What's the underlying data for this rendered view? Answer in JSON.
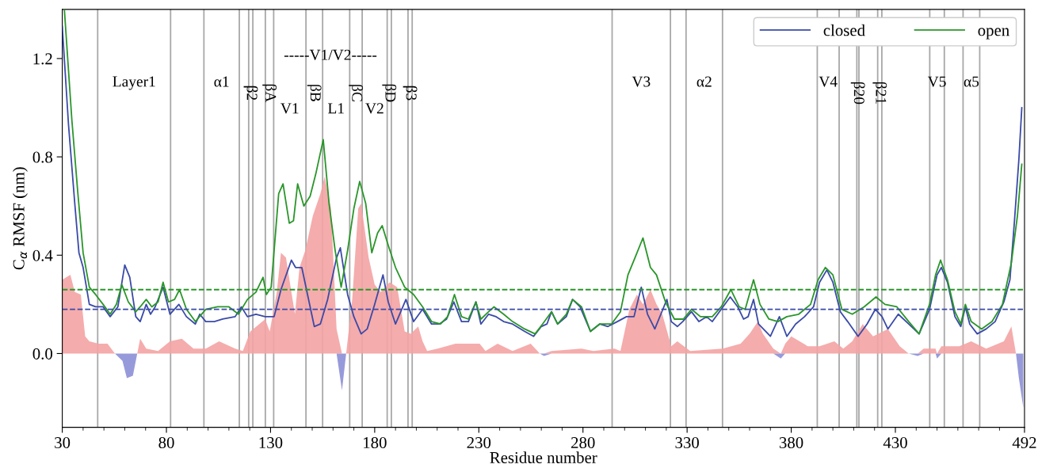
{
  "chart_data": {
    "type": "line",
    "xlabel": "Residue number",
    "ylabel": "C$_{α}$ RMSF (nm)",
    "xlim": [
      30,
      492
    ],
    "ylim": [
      -0.3,
      1.4
    ],
    "xticks": [
      30,
      {
        "value": 40,
        "label": null
      },
      {
        "value": 50,
        "label": null
      },
      {
        "value": 60,
        "label": null
      },
      {
        "value": 70,
        "label": null
      },
      80,
      {
        "value": 90,
        "label": null
      },
      {
        "value": 100,
        "label": null
      },
      {
        "value": 110,
        "label": null
      },
      {
        "value": 120,
        "label": null
      },
      130,
      {
        "value": 140,
        "label": null
      },
      {
        "value": 150,
        "label": null
      },
      {
        "value": 160,
        "label": null
      },
      {
        "value": 170,
        "label": null
      },
      180,
      {
        "value": 190,
        "label": null
      },
      {
        "value": 200,
        "label": null
      },
      {
        "value": 210,
        "label": null
      },
      {
        "value": 220,
        "label": null
      },
      230,
      {
        "value": 240,
        "label": null
      },
      {
        "value": 250,
        "label": null
      },
      {
        "value": 260,
        "label": null
      },
      {
        "value": 270,
        "label": null
      },
      280,
      {
        "value": 290,
        "label": null
      },
      {
        "value": 300,
        "label": null
      },
      {
        "value": 310,
        "label": null
      },
      {
        "value": 320,
        "label": null
      },
      330,
      {
        "value": 340,
        "label": null
      },
      {
        "value": 350,
        "label": null
      },
      {
        "value": 360,
        "label": null
      },
      {
        "value": 370,
        "label": null
      },
      380,
      {
        "value": 390,
        "label": null
      },
      {
        "value": 400,
        "label": null
      },
      {
        "value": 410,
        "label": null
      },
      {
        "value": 420,
        "label": null
      },
      430,
      {
        "value": 440,
        "label": null
      },
      {
        "value": 450,
        "label": null
      },
      {
        "value": 460,
        "label": null
      },
      {
        "value": 470,
        "label": null
      },
      {
        "value": 480,
        "label": null
      },
      492
    ],
    "yticks": [
      {
        "value": 0.0,
        "label": "0.0"
      },
      {
        "value": 0.4,
        "label": "0.4"
      },
      {
        "value": 0.8,
        "label": "0.8"
      },
      {
        "value": 1.2,
        "label": "1.2"
      }
    ],
    "grid": false,
    "legend": "top right",
    "marker": "none",
    "series": [
      {
        "type": "area",
        "color": "#f4a3a3",
        "x": [
          30,
          33.9,
          36,
          38.9,
          41,
          43,
          47.4,
          51.7,
          55.3,
          58.9,
          61,
          63.9,
          66,
          67.4,
          70.3,
          76,
          81.7,
          87.4,
          93,
          98.9,
          105.3,
          113,
          116.7,
          120.3,
          124.6,
          127.4,
          129.6,
          133,
          135,
          137.4,
          140,
          141.7,
          143.9,
          146.7,
          150.3,
          153.9,
          156,
          159,
          161.7,
          164.3,
          166.3,
          169.2,
          172.1,
          173.5,
          177.1,
          180,
          182.9,
          187.2,
          190.8,
          194.4,
          197.3,
          200.9,
          203,
          205.2,
          210.2,
          218.8,
          230.4,
          233.2,
          239,
          246.2,
          254.9,
          259.3,
          261.3,
          264.9,
          279.3,
          285,
          295.1,
          298,
          302.3,
          305.9,
          308.8,
          312.4,
          315.3,
          318.1,
          322.4,
          325.3,
          331.5,
          347.1,
          355.7,
          360,
          364,
          366.4,
          371.4,
          375,
          377.1,
          380,
          387.9,
          393.6,
          400.7,
          405,
          409.3,
          414.3,
          419.3,
          426.4,
          432.1,
          436.4,
          440.7,
          443.6,
          449.3,
          450,
          452.1,
          460.7,
          466.4,
          473.6,
          482.1,
          485.7,
          487.9,
          489.3,
          491.4
        ],
        "values": [
          0.3,
          0.32,
          0.25,
          0.24,
          0.07,
          0.05,
          0.04,
          0.04,
          0,
          0,
          0,
          0,
          0,
          0.06,
          0.02,
          0.01,
          0.05,
          0.06,
          0.02,
          0.02,
          0.05,
          0.02,
          0.01,
          0.09,
          0.12,
          0.14,
          0.09,
          0.25,
          0.41,
          0.39,
          0.25,
          0.16,
          0.35,
          0.42,
          0.56,
          0.65,
          0.72,
          0.59,
          0.1,
          0,
          0,
          0.22,
          0.59,
          0.61,
          0.39,
          0.28,
          0.25,
          0.29,
          0.27,
          0.09,
          0.08,
          0.11,
          0.05,
          0.01,
          0.02,
          0.04,
          0.04,
          0.01,
          0.04,
          0.01,
          0.04,
          0,
          0,
          0.01,
          0.02,
          0.01,
          0.02,
          0.01,
          0.18,
          0.24,
          0.2,
          0.26,
          0.2,
          0.16,
          0.03,
          0.05,
          0.01,
          0.02,
          0.04,
          0.08,
          0.13,
          0.08,
          0.02,
          0,
          0.04,
          0.07,
          0.03,
          0.03,
          0.05,
          0.02,
          0.05,
          0.12,
          0.07,
          0.1,
          0.03,
          0,
          0,
          0.02,
          0.02,
          0,
          0.03,
          0.03,
          0.05,
          0.02,
          0.05,
          0.11,
          0,
          0,
          0
        ]
      },
      {
        "type": "area",
        "color": "#8c8fd6",
        "x": [
          30,
          33.9,
          36,
          38.9,
          41,
          43,
          47.4,
          51.7,
          55.3,
          58.9,
          61,
          63.9,
          66,
          67.4,
          70.3,
          76,
          81.7,
          87.4,
          93,
          98.9,
          105.3,
          113,
          116.7,
          120.3,
          124.6,
          127.4,
          129.6,
          133,
          135,
          137.4,
          140,
          141.7,
          143.9,
          146.7,
          150.3,
          153.9,
          156,
          159,
          161.7,
          164.3,
          166.3,
          169.2,
          172.1,
          173.5,
          177.1,
          180,
          182.9,
          187.2,
          190.8,
          194.4,
          197.3,
          200.9,
          203,
          205.2,
          210.2,
          218.8,
          230.4,
          233.2,
          239,
          246.2,
          254.9,
          259.3,
          261.3,
          264.9,
          279.3,
          285,
          295.1,
          298,
          302.3,
          305.9,
          308.8,
          312.4,
          315.3,
          318.1,
          322.4,
          325.3,
          331.5,
          347.1,
          355.7,
          360,
          364,
          366.4,
          371.4,
          375,
          377.1,
          380,
          387.9,
          393.6,
          400.7,
          405,
          409.3,
          414.3,
          419.3,
          426.4,
          432.1,
          436.4,
          440.7,
          443.6,
          449.3,
          450,
          452.1,
          460.7,
          466.4,
          473.6,
          482.1,
          485.7,
          487.9,
          489.3,
          491.4
        ],
        "values": [
          0,
          0,
          0,
          0,
          0,
          0,
          0,
          0,
          0,
          -0.03,
          -0.1,
          -0.09,
          0,
          0,
          0,
          0,
          0,
          0,
          0,
          0,
          0,
          0,
          0,
          0,
          0,
          0,
          0,
          0,
          0,
          0,
          0,
          0,
          0,
          0,
          0,
          0,
          0,
          0,
          0,
          -0.15,
          0,
          0,
          0,
          0,
          0,
          0,
          0,
          0,
          0,
          0,
          0,
          0,
          0,
          0,
          0,
          0,
          0,
          0,
          0,
          0,
          0,
          0,
          -0.01,
          0,
          0,
          0,
          0,
          0,
          0,
          0,
          0,
          0,
          0,
          0,
          0,
          0,
          0,
          0,
          0,
          0,
          0,
          0,
          0,
          -0.02,
          0,
          0,
          0,
          0,
          0,
          0,
          0,
          0,
          0,
          0,
          0,
          0,
          -0.01,
          0,
          0,
          -0.02,
          0,
          0,
          0,
          0,
          0,
          0,
          0,
          -0.1,
          -0.22
        ]
      },
      {
        "type": "line",
        "name": "closed",
        "color": "#3a4aa8",
        "x": [
          30,
          33,
          36,
          38,
          40,
          43,
          46,
          49.6,
          53,
          56.7,
          60,
          62.4,
          65.3,
          67.4,
          70.3,
          72.4,
          74.6,
          78.4,
          81.7,
          86,
          89.6,
          93.9,
          96,
          98.9,
          103,
          107,
          113,
          116,
          118.9,
          123,
          127.4,
          131.7,
          135,
          140,
          142,
          145,
          149,
          151,
          153.9,
          157.4,
          161.7,
          163.5,
          167,
          170,
          173.5,
          176.4,
          180,
          184,
          186.5,
          190,
          195,
          198.7,
          203,
          207.3,
          211,
          214.5,
          218,
          221.7,
          225,
          228.6,
          231,
          234.7,
          238.3,
          241.9,
          246.2,
          252,
          256.3,
          260,
          262.7,
          264.9,
          267.8,
          272,
          275,
          278.6,
          283.6,
          288,
          292,
          296.5,
          300.9,
          304.5,
          308,
          311,
          314.5,
          317.4,
          320.3,
          322.4,
          325.3,
          327.9,
          332.1,
          335.7,
          339.3,
          342.1,
          346.4,
          350.7,
          354.3,
          357.1,
          359.3,
          361.9,
          364.3,
          370,
          374.3,
          377.9,
          382.1,
          386.4,
          390.7,
          393.6,
          397.1,
          400,
          403.6,
          407.1,
          412.1,
          416.4,
          420.4,
          423.6,
          426.4,
          431.4,
          436.4,
          441.4,
          446.4,
          450,
          452.1,
          455,
          458.6,
          461.4,
          463.6,
          465.7,
          469.3,
          473.6,
          477.9,
          482.1,
          485,
          487.1,
          489.3,
          490.7
        ],
        "values": [
          1.33,
          0.93,
          0.61,
          0.41,
          0.35,
          0.2,
          0.19,
          0.19,
          0.15,
          0.19,
          0.36,
          0.31,
          0.15,
          0.13,
          0.2,
          0.16,
          0.19,
          0.27,
          0.16,
          0.2,
          0.15,
          0.12,
          0.16,
          0.13,
          0.13,
          0.14,
          0.15,
          0.19,
          0.15,
          0.16,
          0.15,
          0.15,
          0.26,
          0.38,
          0.35,
          0.35,
          0.19,
          0.11,
          0.12,
          0.22,
          0.39,
          0.43,
          0.24,
          0.15,
          0.08,
          0.1,
          0.2,
          0.32,
          0.21,
          0.12,
          0.22,
          0.13,
          0.18,
          0.12,
          0.12,
          0.14,
          0.21,
          0.13,
          0.13,
          0.21,
          0.12,
          0.16,
          0.15,
          0.13,
          0.12,
          0.09,
          0.07,
          0.11,
          0.12,
          0.17,
          0.12,
          0.15,
          0.22,
          0.19,
          0.09,
          0.12,
          0.11,
          0.13,
          0.15,
          0.15,
          0.27,
          0.16,
          0.1,
          0.16,
          0.22,
          0.13,
          0.11,
          0.13,
          0.17,
          0.13,
          0.15,
          0.13,
          0.18,
          0.23,
          0.19,
          0.14,
          0.15,
          0.22,
          0.12,
          0.07,
          0.15,
          0.07,
          0.12,
          0.15,
          0.19,
          0.29,
          0.34,
          0.29,
          0.17,
          0.13,
          0.07,
          0.12,
          0.18,
          0.15,
          0.1,
          0.16,
          0.12,
          0.08,
          0.18,
          0.32,
          0.35,
          0.29,
          0.15,
          0.11,
          0.19,
          0.12,
          0.08,
          0.1,
          0.13,
          0.21,
          0.3,
          0.53,
          0.79,
          1.0
        ]
      },
      {
        "type": "line",
        "name": "open",
        "color": "#2a962a",
        "x": [
          31,
          34.6,
          37.4,
          40,
          43,
          46,
          49.6,
          53,
          56,
          58.6,
          61.7,
          65.3,
          67.4,
          70.3,
          73,
          76,
          78.4,
          81,
          83.9,
          86.3,
          89.6,
          93.9,
          98.9,
          104.6,
          110,
          114.6,
          118.9,
          123,
          126.4,
          128,
          130.3,
          133.9,
          136,
          139,
          141,
          143,
          146,
          149,
          151.7,
          155.3,
          158.1,
          161,
          163.9,
          167,
          170,
          172.8,
          175.7,
          178.6,
          181.4,
          183.6,
          186.5,
          190,
          194.4,
          198.7,
          203,
          207.3,
          211.6,
          215,
          218.3,
          221.7,
          225,
          228.6,
          231,
          234.7,
          237.3,
          241.9,
          246.2,
          252,
          257,
          260.6,
          264.9,
          267.8,
          272,
          275,
          279.3,
          283.6,
          288,
          293.7,
          298,
          301.6,
          305,
          308.8,
          312.4,
          315.3,
          319.6,
          323.9,
          328.2,
          332.1,
          336.4,
          342.1,
          346.4,
          351,
          355,
          357.9,
          361.9,
          365,
          369.3,
          373.6,
          377.9,
          383.6,
          389.3,
          392.9,
          396.4,
          400,
          404.3,
          409.3,
          415,
          420.7,
          425,
          430.7,
          436.4,
          441.4,
          446.4,
          449.3,
          451.7,
          455,
          458.6,
          461.4,
          463.6,
          466.4,
          471.4,
          476.4,
          481.4,
          485.7,
          488.6,
          490.7
        ],
        "values": [
          1.4,
          0.95,
          0.66,
          0.41,
          0.27,
          0.24,
          0.2,
          0.16,
          0.2,
          0.28,
          0.21,
          0.17,
          0.19,
          0.22,
          0.19,
          0.21,
          0.29,
          0.21,
          0.22,
          0.26,
          0.18,
          0.13,
          0.18,
          0.19,
          0.19,
          0.16,
          0.22,
          0.25,
          0.31,
          0.24,
          0.27,
          0.65,
          0.69,
          0.53,
          0.54,
          0.69,
          0.6,
          0.64,
          0.73,
          0.87,
          0.61,
          0.42,
          0.27,
          0.42,
          0.59,
          0.7,
          0.61,
          0.41,
          0.49,
          0.52,
          0.44,
          0.35,
          0.27,
          0.24,
          0.19,
          0.13,
          0.12,
          0.15,
          0.24,
          0.15,
          0.14,
          0.21,
          0.14,
          0.17,
          0.19,
          0.16,
          0.13,
          0.1,
          0.08,
          0.12,
          0.17,
          0.12,
          0.16,
          0.22,
          0.19,
          0.09,
          0.12,
          0.12,
          0.17,
          0.32,
          0.39,
          0.47,
          0.35,
          0.32,
          0.21,
          0.14,
          0.14,
          0.18,
          0.15,
          0.15,
          0.19,
          0.26,
          0.19,
          0.18,
          0.3,
          0.2,
          0.14,
          0.13,
          0.15,
          0.16,
          0.2,
          0.3,
          0.35,
          0.32,
          0.18,
          0.16,
          0.19,
          0.23,
          0.2,
          0.19,
          0.13,
          0.08,
          0.2,
          0.32,
          0.38,
          0.3,
          0.17,
          0.12,
          0.2,
          0.13,
          0.1,
          0.13,
          0.2,
          0.37,
          0.56,
          0.77
        ]
      }
    ],
    "ref_lines": [
      {
        "axis": "y",
        "value": 0.26,
        "color": "#2a962a",
        "line_style": "dashed"
      },
      {
        "axis": "y",
        "value": 0.18,
        "color": "#3a4aa8",
        "line_style": "dashed"
      },
      {
        "axis": "x",
        "value": 47,
        "color": "#a8a8a8"
      },
      {
        "axis": "x",
        "value": 82,
        "color": "#a8a8a8"
      },
      {
        "axis": "x",
        "value": 98,
        "color": "#a8a8a8"
      },
      {
        "axis": "x",
        "value": 115,
        "color": "#a8a8a8"
      },
      {
        "axis": "x",
        "value": 119.5,
        "color": "#a8a8a8"
      },
      {
        "axis": "x",
        "value": 121.5,
        "color": "#a8a8a8"
      },
      {
        "axis": "x",
        "value": 127.5,
        "color": "#a8a8a8"
      },
      {
        "axis": "x",
        "value": 131.5,
        "color": "#a8a8a8"
      },
      {
        "axis": "x",
        "value": 147,
        "color": "#a8a8a8"
      },
      {
        "axis": "x",
        "value": 155,
        "color": "#a8a8a8"
      },
      {
        "axis": "x",
        "value": 168,
        "color": "#a8a8a8"
      },
      {
        "axis": "x",
        "value": 174,
        "color": "#a8a8a8"
      },
      {
        "axis": "x",
        "value": 186,
        "color": "#a8a8a8"
      },
      {
        "axis": "x",
        "value": 188,
        "color": "#a8a8a8"
      },
      {
        "axis": "x",
        "value": 196,
        "color": "#a8a8a8"
      },
      {
        "axis": "x",
        "value": 198,
        "color": "#a8a8a8"
      },
      {
        "axis": "x",
        "value": 294,
        "color": "#a8a8a8"
      },
      {
        "axis": "x",
        "value": 322,
        "color": "#a8a8a8"
      },
      {
        "axis": "x",
        "value": 329.5,
        "color": "#a8a8a8"
      },
      {
        "axis": "x",
        "value": 347,
        "color": "#a8a8a8"
      },
      {
        "axis": "x",
        "value": 392.5,
        "color": "#a8a8a8"
      },
      {
        "axis": "x",
        "value": 403,
        "color": "#a8a8a8"
      },
      {
        "axis": "x",
        "value": 411.5,
        "color": "#a8a8a8"
      },
      {
        "axis": "x",
        "value": 412.5,
        "color": "#a8a8a8"
      },
      {
        "axis": "x",
        "value": 421.5,
        "color": "#a8a8a8"
      },
      {
        "axis": "x",
        "value": 423.5,
        "color": "#a8a8a8"
      },
      {
        "axis": "x",
        "value": 446.5,
        "color": "#a8a8a8"
      },
      {
        "axis": "x",
        "value": 453.5,
        "color": "#a8a8a8"
      },
      {
        "axis": "x",
        "value": 462.5,
        "color": "#a8a8a8"
      },
      {
        "axis": "x",
        "value": 470.5,
        "color": "#a8a8a8"
      }
    ],
    "annotations": [
      "Layer1",
      "α1",
      "β2",
      "βA",
      "βB",
      "βC",
      "βD",
      "β3",
      "V1",
      "L1",
      "V2",
      "-----V1/V2-----",
      "V3",
      "α2",
      "V4",
      "β20",
      "β21",
      "V5",
      "α5"
    ]
  }
}
